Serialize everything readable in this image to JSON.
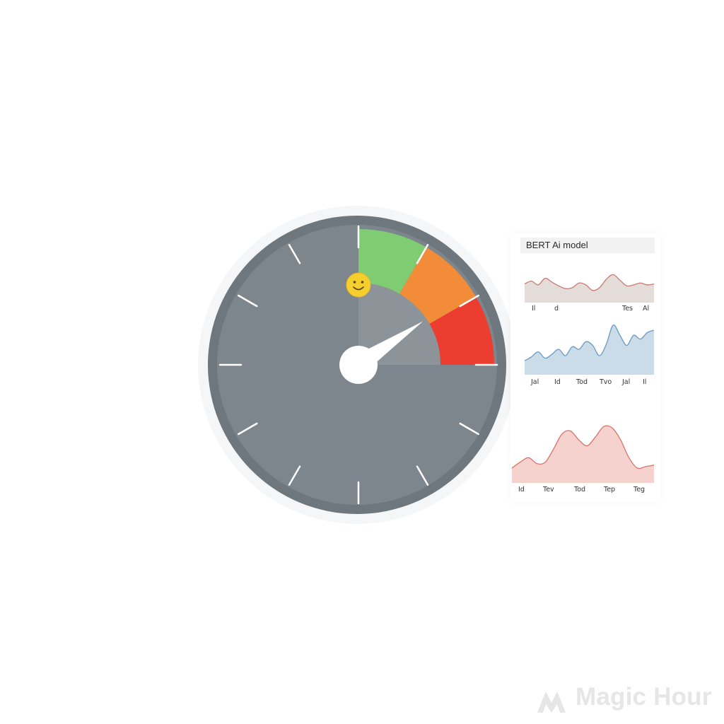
{
  "chart_data": [
    {
      "type": "gauge",
      "range": [
        0,
        100
      ],
      "zones": [
        {
          "name": "green",
          "from": 0,
          "to": 20,
          "color": "#7fcc73"
        },
        {
          "name": "orange",
          "from": 20,
          "to": 40,
          "color": "#f28c38"
        },
        {
          "name": "red",
          "from": 40,
          "to": 60,
          "color": "#eb3e31"
        }
      ],
      "needle_value": 35,
      "major_ticks": 12,
      "face_color": "#7d868c",
      "rim_color": "#6e777d",
      "inner_highlight_color": "#8c9499",
      "indicator_icon": "smiley-face-icon"
    },
    {
      "type": "area",
      "title": "BERT Ai model",
      "x_tick_labels": [
        "Il",
        "d",
        "Tes",
        "Al"
      ],
      "values": [
        40,
        46,
        38,
        52,
        44,
        36,
        30,
        32,
        42,
        38,
        26,
        32,
        50,
        60,
        48,
        36,
        38,
        42,
        38,
        40
      ],
      "ylim": [
        0,
        100
      ],
      "line_color": "#c97a72",
      "fill_color": "#e4dcd8"
    },
    {
      "type": "area",
      "title": "",
      "x_tick_labels": [
        "Jal",
        "Id",
        "Tod",
        "Tvo",
        "Jal",
        "Il"
      ],
      "values": [
        22,
        28,
        36,
        26,
        32,
        40,
        30,
        44,
        40,
        52,
        46,
        30,
        48,
        78,
        62,
        46,
        62,
        56,
        66,
        70
      ],
      "ylim": [
        0,
        100
      ],
      "line_color": "#6b9ac4",
      "fill_color": "#c9dce8"
    },
    {
      "type": "area",
      "title": "",
      "x_tick_labels": [
        "Id",
        "Tev",
        "Tod",
        "Tep",
        "Teg"
      ],
      "values": [
        20,
        28,
        34,
        26,
        28,
        46,
        66,
        70,
        58,
        50,
        62,
        76,
        74,
        58,
        34,
        20,
        22,
        24
      ],
      "ylim": [
        0,
        100
      ],
      "line_color": "#d9736a",
      "fill_color": "#f5d2ce"
    }
  ],
  "watermark": {
    "text": "Magic Hour",
    "logo_icon": "magic-hour-logo-icon"
  }
}
